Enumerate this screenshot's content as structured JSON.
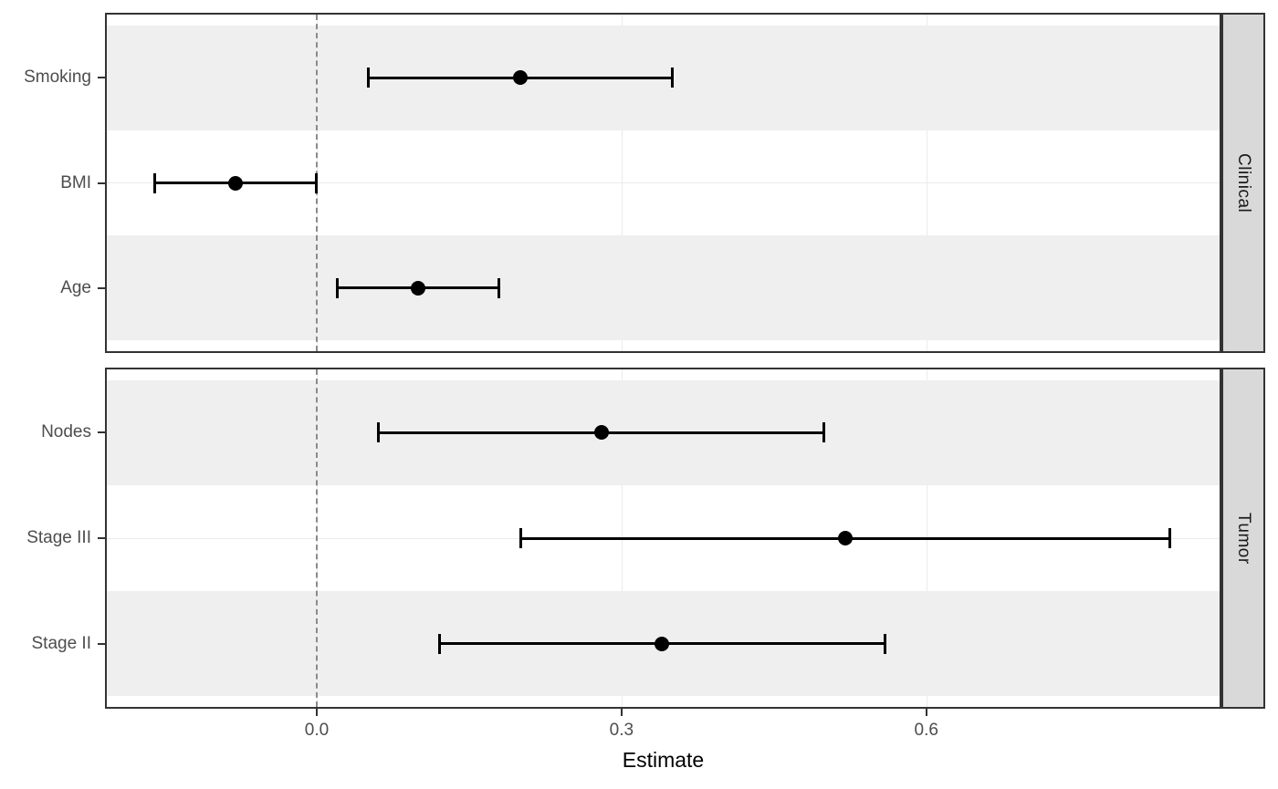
{
  "chart_data": {
    "type": "forest",
    "title": "",
    "xlabel": "Estimate",
    "x_ticks": [
      0.0,
      0.3,
      0.6
    ],
    "x_tick_labels": [
      "0.0",
      "0.3",
      "0.6"
    ],
    "xlim": [
      -0.2085,
      0.8905
    ],
    "reference_line": {
      "x": 0.0,
      "style": "dashed"
    },
    "legend": "none",
    "facets": [
      {
        "label": "Clinical",
        "rows": [
          {
            "label": "Smoking",
            "estimate": 0.2,
            "ci_low": 0.05,
            "ci_high": 0.35
          },
          {
            "label": "BMI",
            "estimate": -0.08,
            "ci_low": -0.16,
            "ci_high": 0.0
          },
          {
            "label": "Age",
            "estimate": 0.1,
            "ci_low": 0.02,
            "ci_high": 0.18
          }
        ]
      },
      {
        "label": "Tumor",
        "rows": [
          {
            "label": "Nodes",
            "estimate": 0.28,
            "ci_low": 0.06,
            "ci_high": 0.5
          },
          {
            "label": "Stage III",
            "estimate": 0.52,
            "ci_low": 0.2,
            "ci_high": 0.84
          },
          {
            "label": "Stage II",
            "estimate": 0.34,
            "ci_low": 0.12,
            "ci_high": 0.56
          }
        ]
      }
    ],
    "colors": {
      "point": "#000000",
      "error_bar": "#000000",
      "row_stripe": "#EFEFEF",
      "gridline": "#EBEBEB",
      "strip_background": "#D9D9D9",
      "panel_border": "#333333",
      "axis_text": "#4D4D4D",
      "reference_line": "#8A8A8A"
    }
  }
}
